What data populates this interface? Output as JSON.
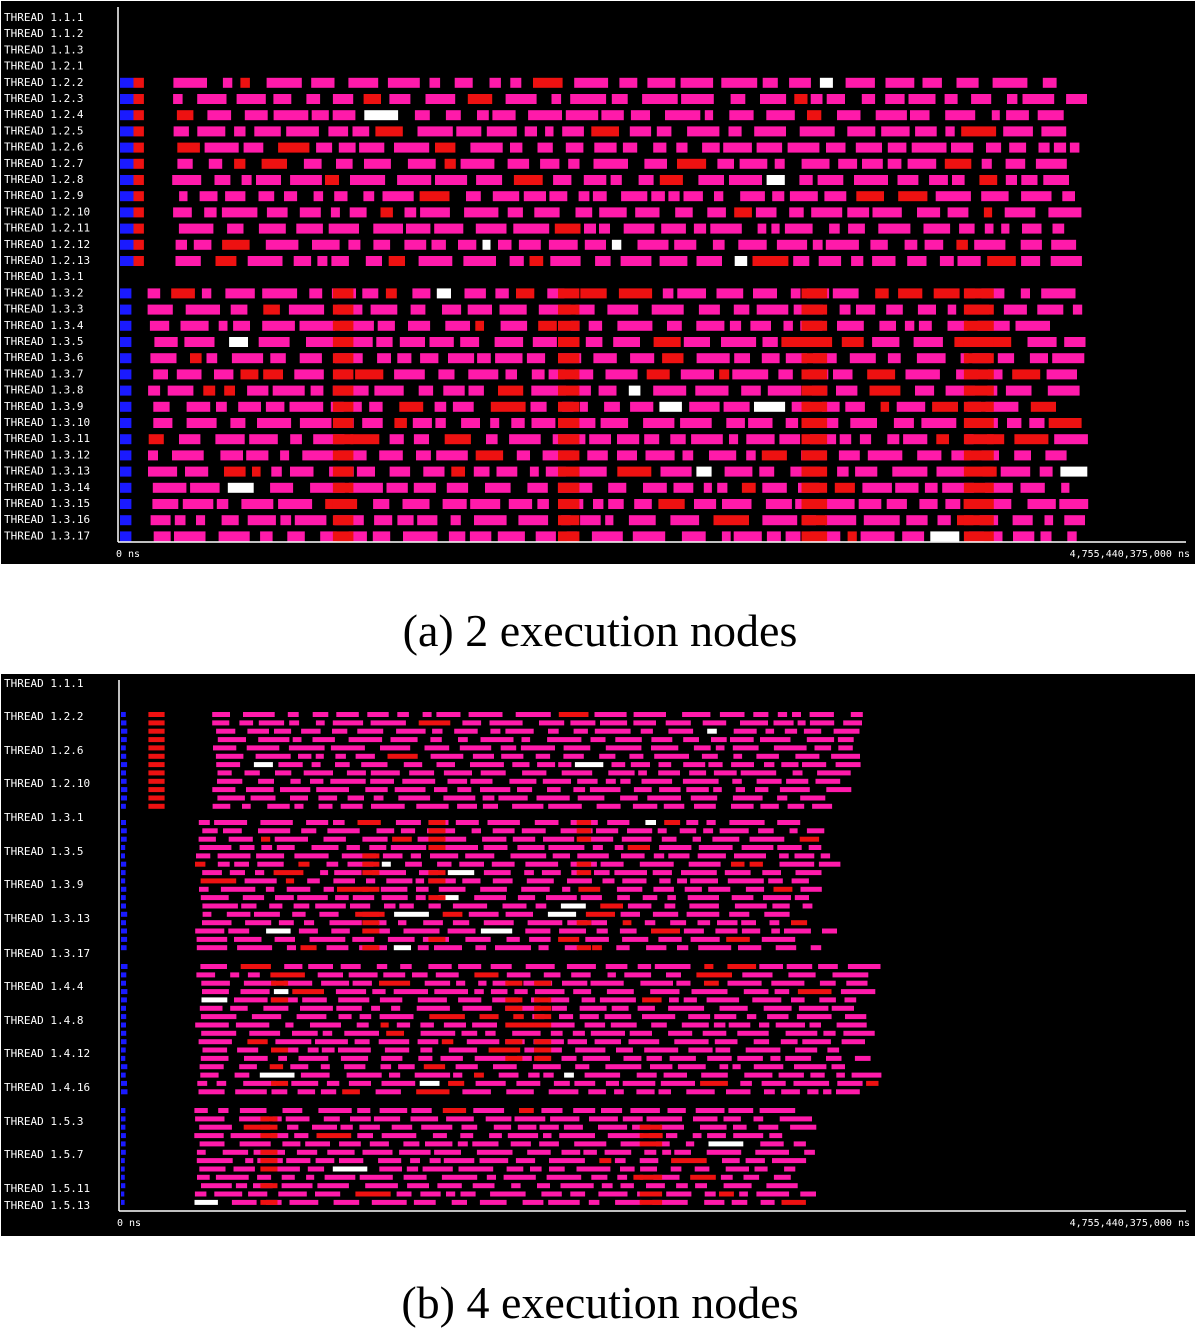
{
  "chart_data": [
    {
      "type": "timeline",
      "caption": "(a) 2 execution nodes",
      "x_start_label": "0 ns",
      "x_end_label": "4,755,440,375,000 ns",
      "x_unit": "ns",
      "xlim": [
        0,
        4755440375000
      ],
      "colors": {
        "blue": "#1a1aff",
        "red": "#ee1111",
        "pink": "#ff1aaa",
        "white": "#ffffff"
      },
      "rows": [
        {
          "label": "THREAD 1.1.1",
          "group": "1.1"
        },
        {
          "label": "THREAD 1.1.2",
          "group": "1.1"
        },
        {
          "label": "THREAD 1.1.3",
          "group": "1.1"
        },
        {
          "label": "THREAD 1.2.1",
          "group": "1.2",
          "empty": true
        },
        {
          "label": "THREAD 1.2.2",
          "group": "1.2"
        },
        {
          "label": "THREAD 1.2.3",
          "group": "1.2"
        },
        {
          "label": "THREAD 1.2.4",
          "group": "1.2"
        },
        {
          "label": "THREAD 1.2.5",
          "group": "1.2"
        },
        {
          "label": "THREAD 1.2.6",
          "group": "1.2"
        },
        {
          "label": "THREAD 1.2.7",
          "group": "1.2"
        },
        {
          "label": "THREAD 1.2.8",
          "group": "1.2"
        },
        {
          "label": "THREAD 1.2.9",
          "group": "1.2"
        },
        {
          "label": "THREAD 1.2.10",
          "group": "1.2"
        },
        {
          "label": "THREAD 1.2.11",
          "group": "1.2"
        },
        {
          "label": "THREAD 1.2.12",
          "group": "1.2"
        },
        {
          "label": "THREAD 1.2.13",
          "group": "1.2"
        },
        {
          "label": "THREAD 1.3.1",
          "group": "1.3",
          "empty": true
        },
        {
          "label": "THREAD 1.3.2",
          "group": "1.3"
        },
        {
          "label": "THREAD 1.3.3",
          "group": "1.3"
        },
        {
          "label": "THREAD 1.3.4",
          "group": "1.3"
        },
        {
          "label": "THREAD 1.3.5",
          "group": "1.3"
        },
        {
          "label": "THREAD 1.3.6",
          "group": "1.3"
        },
        {
          "label": "THREAD 1.3.7",
          "group": "1.3"
        },
        {
          "label": "THREAD 1.3.8",
          "group": "1.3"
        },
        {
          "label": "THREAD 1.3.9",
          "group": "1.3"
        },
        {
          "label": "THREAD 1.3.10",
          "group": "1.3"
        },
        {
          "label": "THREAD 1.3.11",
          "group": "1.3"
        },
        {
          "label": "THREAD 1.3.12",
          "group": "1.3"
        },
        {
          "label": "THREAD 1.3.13",
          "group": "1.3"
        },
        {
          "label": "THREAD 1.3.14",
          "group": "1.3"
        },
        {
          "label": "THREAD 1.3.15",
          "group": "1.3"
        },
        {
          "label": "THREAD 1.3.16",
          "group": "1.3"
        },
        {
          "label": "THREAD 1.3.17",
          "group": "1.3"
        }
      ],
      "groups": {
        "1.1": {
          "empty": true
        },
        "1.2": {
          "initial": [
            0.0,
            0.0126
          ],
          "red": [
            0.0126,
            0.0223
          ],
          "active_end": 0.882,
          "red_frac": 0.09,
          "white_frac": 0.012
        },
        "1.3": {
          "initial": [
            0.0,
            0.0107
          ],
          "red_runs": [
            [
              0.0503,
              0.0551
            ],
            [
              0.103,
              0.108
            ],
            [
              0.16,
              0.166
            ],
            [
              0.198,
              0.205
            ]
          ],
          "active_end": 0.902,
          "red_frac": 0.12,
          "white_frac": 0.02
        }
      }
    },
    {
      "type": "timeline",
      "caption": "(b) 4 execution nodes",
      "x_start_label": "0 ns",
      "x_end_label": "4,755,440,375,000 ns",
      "x_unit": "ns",
      "xlim": [
        0,
        4755440375000
      ],
      "colors": {
        "blue": "#1a1aff",
        "red": "#ee1111",
        "pink": "#ff1aaa",
        "white": "#ffffff"
      },
      "labeled_rows": [
        {
          "label": "THREAD 1.1.1",
          "group": "1.1"
        },
        {
          "label": "THREAD 1.2.2",
          "group": "1.2"
        },
        {
          "label": "THREAD 1.2.6",
          "group": "1.2"
        },
        {
          "label": "THREAD 1.2.10",
          "group": "1.2"
        },
        {
          "label": "THREAD 1.3.1",
          "group": "1.3"
        },
        {
          "label": "THREAD 1.3.5",
          "group": "1.3"
        },
        {
          "label": "THREAD 1.3.9",
          "group": "1.3"
        },
        {
          "label": "THREAD 1.3.13",
          "group": "1.3"
        },
        {
          "label": "THREAD 1.3.17",
          "group": "1.3"
        },
        {
          "label": "THREAD 1.4.4",
          "group": "1.4"
        },
        {
          "label": "THREAD 1.4.8",
          "group": "1.4"
        },
        {
          "label": "THREAD 1.4.12",
          "group": "1.4"
        },
        {
          "label": "THREAD 1.4.16",
          "group": "1.4"
        },
        {
          "label": "THREAD 1.5.3",
          "group": "1.5"
        },
        {
          "label": "THREAD 1.5.7",
          "group": "1.5"
        },
        {
          "label": "THREAD 1.5.11",
          "group": "1.5"
        },
        {
          "label": "THREAD 1.5.13",
          "group": "1.5"
        }
      ],
      "groups": {
        "1.1": {
          "empty": true
        },
        "1.2": {
          "initial": [
            0.0,
            0.0056
          ],
          "red": [
            0.0069,
            0.0107
          ],
          "active_end": 0.63,
          "red_frac": 0.02,
          "white_frac": 0.015
        },
        "1.3": {
          "initial": [
            0.0,
            0.0053
          ],
          "red_runs": [
            [
              0.0456,
              0.0488
            ],
            [
              0.058,
              0.0612
            ],
            [
              0.0858,
              0.0885
            ]
          ],
          "active_end": 0.62,
          "red_frac": 0.08,
          "white_frac": 0.02
        },
        "1.4": {
          "initial": [
            0.0,
            0.0056
          ],
          "red_runs": [
            [
              0.0285,
              0.0317
            ],
            [
              0.0724,
              0.0756
            ],
            [
              0.0778,
              0.081
            ]
          ],
          "active_end": 0.66,
          "red_frac": 0.08,
          "white_frac": 0.02
        },
        "1.5": {
          "initial": [
            0.0,
            0.0042
          ],
          "red_runs": [
            [
              0.0265,
              0.0297
            ],
            [
              0.0976,
              0.1018
            ]
          ],
          "active_end": 0.6,
          "red_frac": 0.04,
          "white_frac": 0.02
        }
      }
    }
  ]
}
